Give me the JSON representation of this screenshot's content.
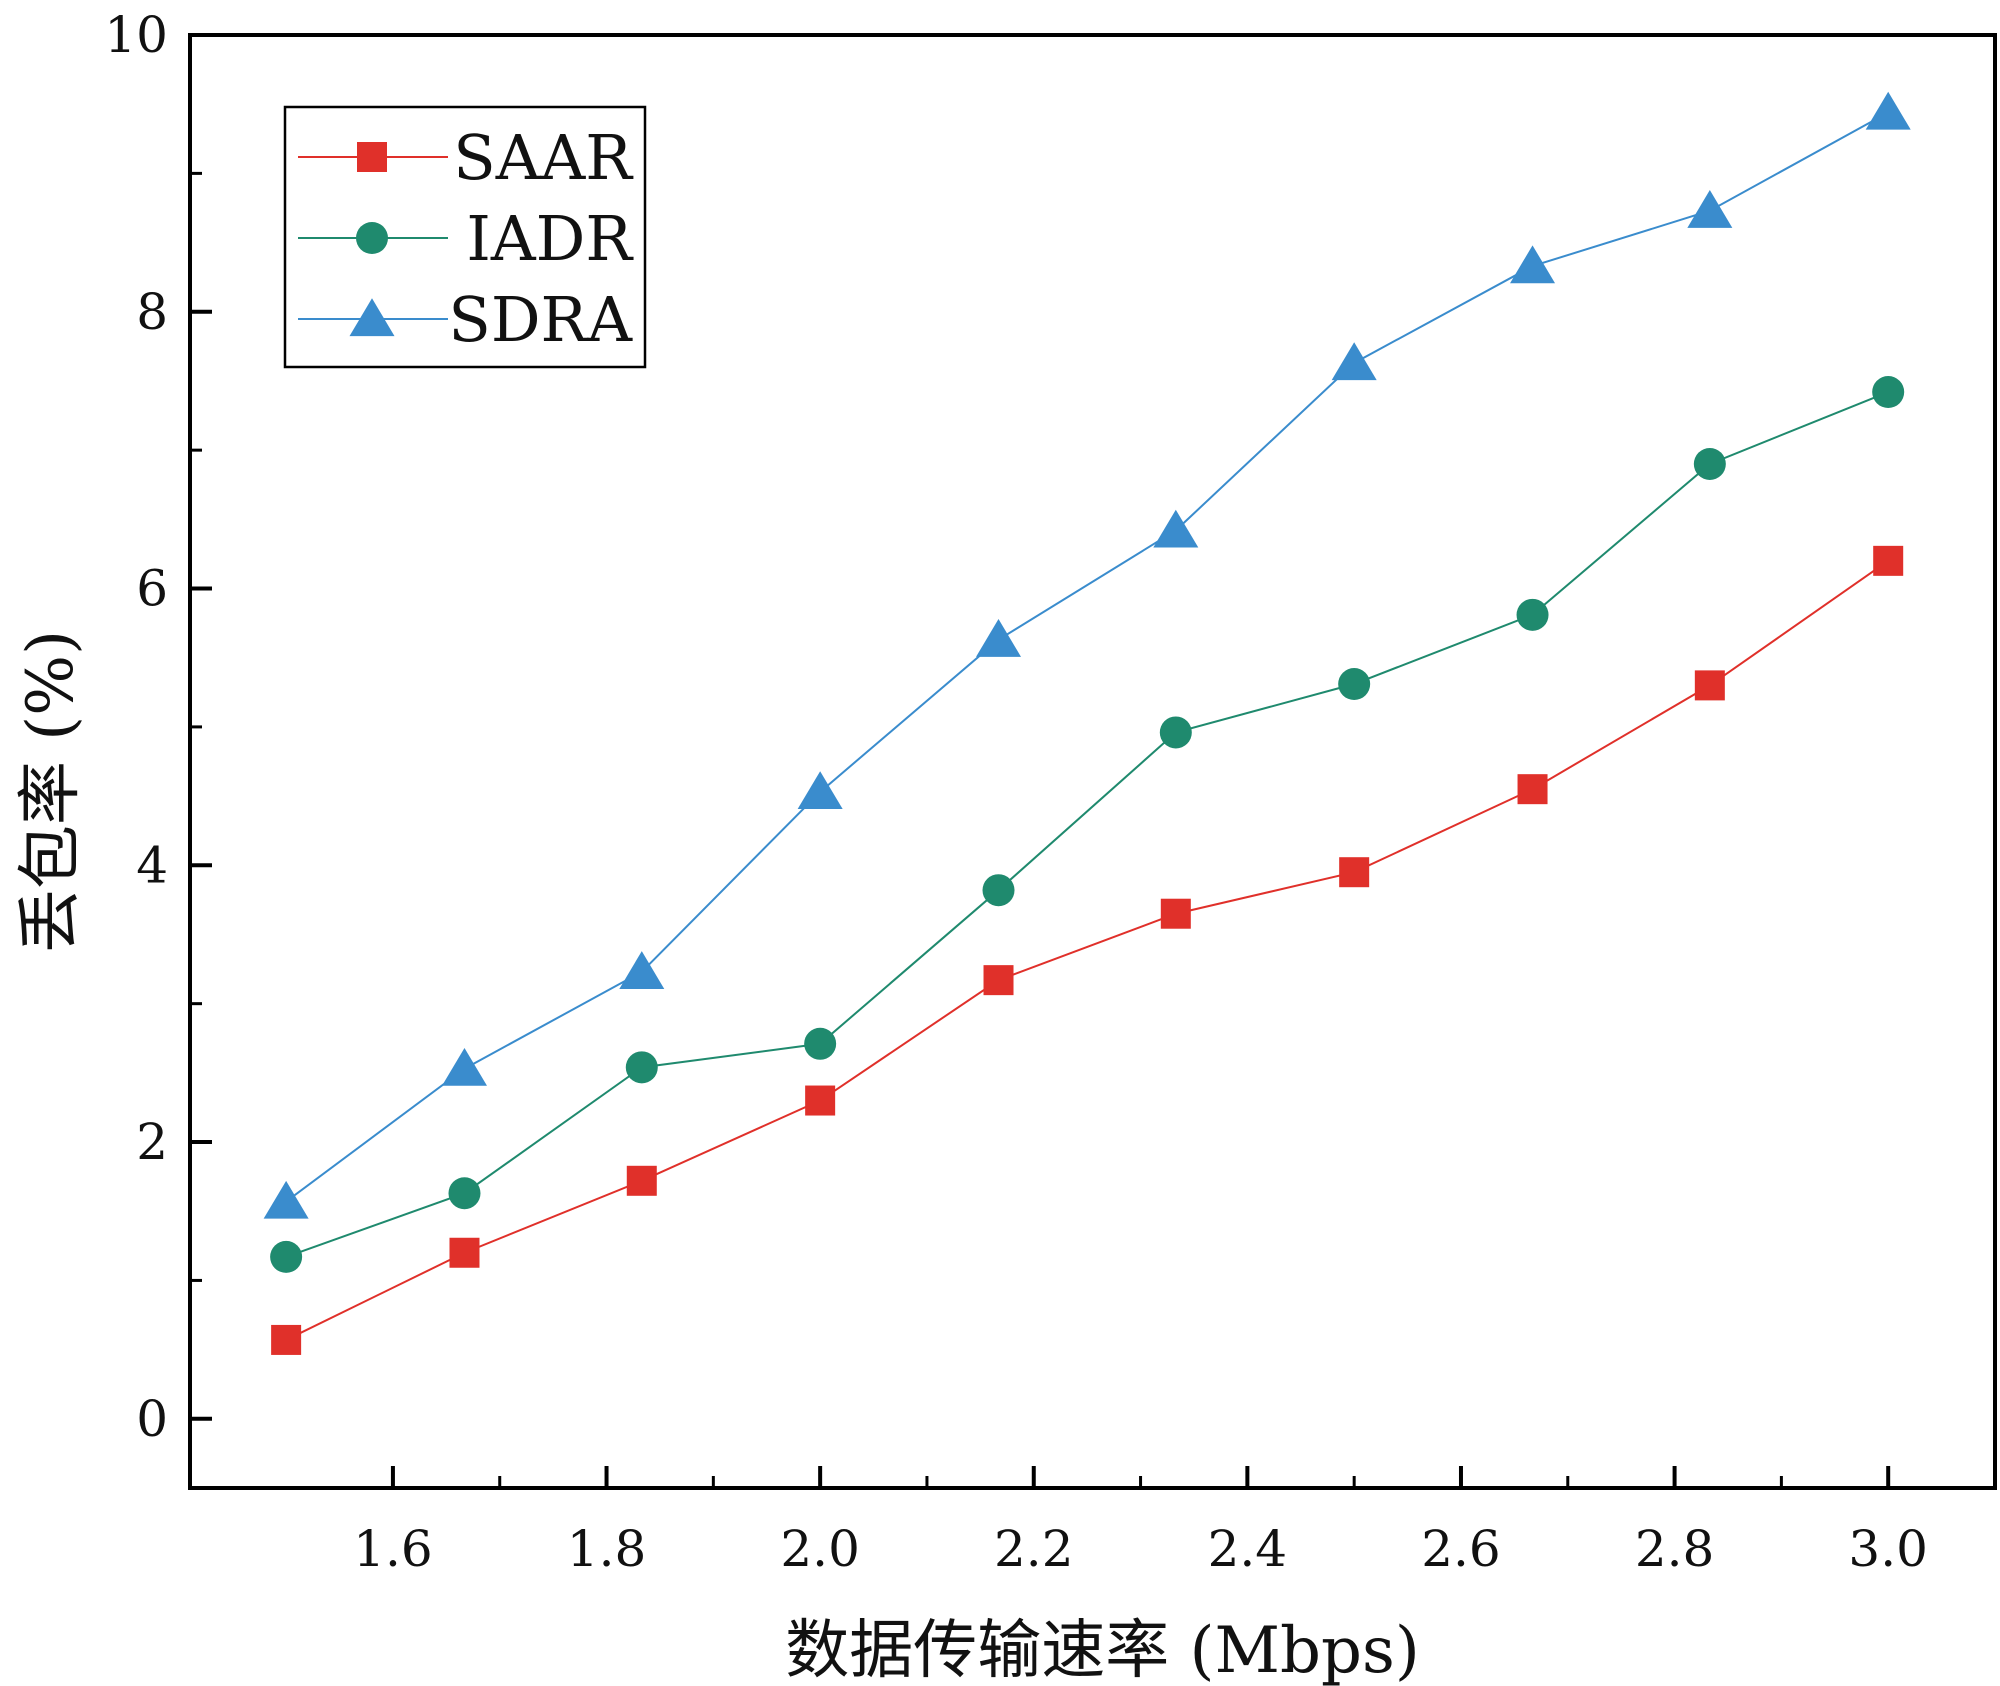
{
  "chart_data": {
    "type": "line",
    "title": "",
    "xlabel": "数据传输速率 (Mbps)",
    "ylabel": "丢包率 (%)",
    "xlim": [
      1.41,
      3.1
    ],
    "ylim": [
      -0.5,
      10
    ],
    "xticks": [
      1.6,
      1.8,
      2.0,
      2.2,
      2.4,
      2.6,
      2.8,
      3.0
    ],
    "xtick_labels": [
      "1.6",
      "1.8",
      "2.0",
      "2.2",
      "2.4",
      "2.6",
      "2.8",
      "3.0"
    ],
    "yticks": [
      0,
      2,
      4,
      6,
      8,
      10
    ],
    "ytick_labels": [
      "0",
      "2",
      "4",
      "6",
      "8",
      "10"
    ],
    "grid": false,
    "legend_position": "top-left",
    "x": [
      1.5,
      1.667,
      1.833,
      2.0,
      2.167,
      2.333,
      2.5,
      2.667,
      2.833,
      3.0
    ],
    "series": [
      {
        "name": "SAAR",
        "color": "#e0302a",
        "marker": "square",
        "values": [
          0.57,
          1.2,
          1.72,
          2.3,
          3.17,
          3.65,
          3.95,
          4.55,
          5.3,
          6.2
        ]
      },
      {
        "name": "IADR",
        "color": "#1f8a6e",
        "marker": "circle",
        "values": [
          1.17,
          1.63,
          2.54,
          2.71,
          3.82,
          4.96,
          5.31,
          5.81,
          6.9,
          7.42
        ]
      },
      {
        "name": "SDRA",
        "color": "#3a8ccd",
        "marker": "triangle",
        "values": [
          1.57,
          2.53,
          3.23,
          4.53,
          5.63,
          6.42,
          7.63,
          8.33,
          8.73,
          9.44
        ]
      }
    ]
  }
}
